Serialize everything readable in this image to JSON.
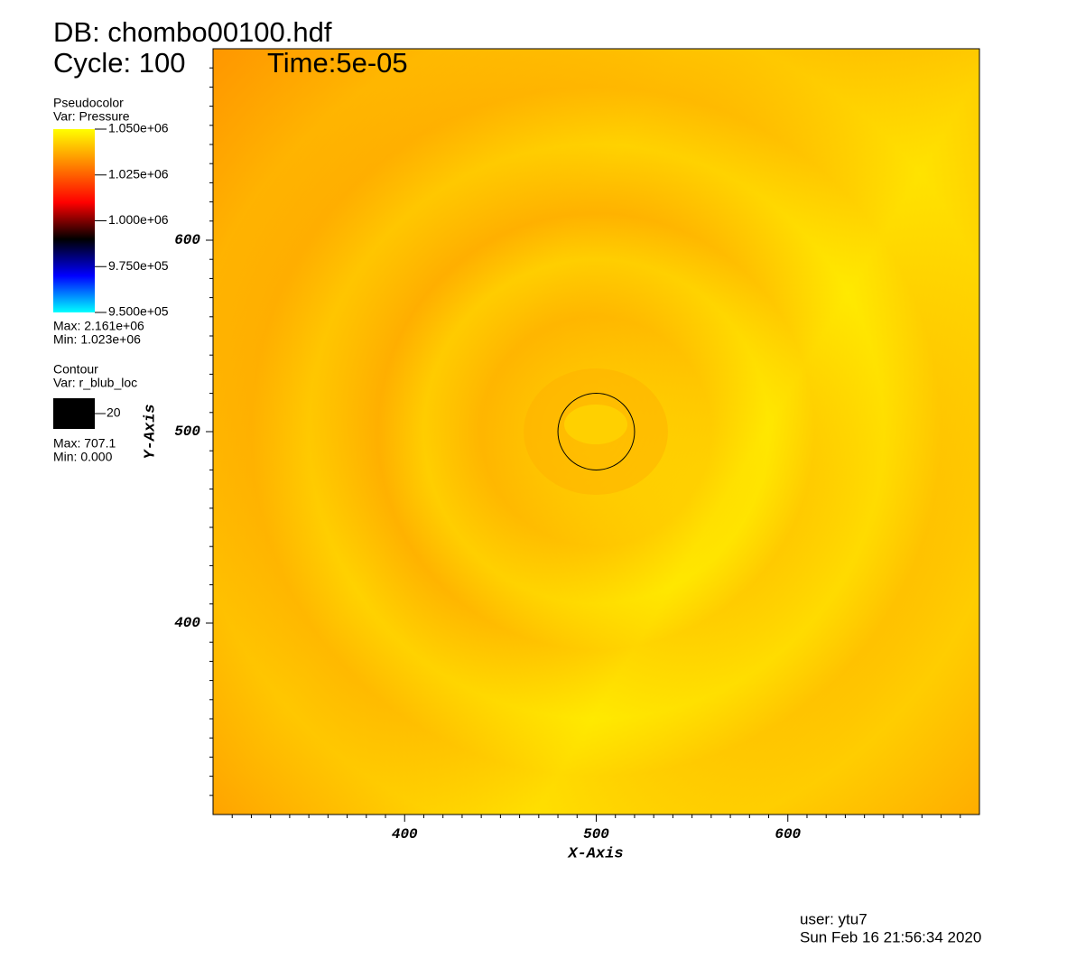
{
  "chart_data": {
    "type": "pseudocolor",
    "title": "DB: chombo00100.hdf",
    "cycle": "Cycle: 100",
    "time": "Time:5e-05",
    "xlabel": "X-Axis",
    "ylabel": "Y-Axis",
    "xlim": [
      300,
      700
    ],
    "ylim": [
      300,
      700
    ],
    "xticks": [
      400,
      500,
      600
    ],
    "yticks": [
      400,
      500,
      600
    ],
    "xminorticks": [
      310,
      320,
      330,
      340,
      350,
      360,
      370,
      380,
      390,
      410,
      420,
      430,
      440,
      450,
      460,
      470,
      480,
      490,
      510,
      520,
      530,
      540,
      550,
      560,
      570,
      580,
      590,
      610,
      620,
      630,
      640,
      650,
      660,
      670,
      680,
      690
    ],
    "yminorticks": [
      310,
      320,
      330,
      340,
      350,
      360,
      370,
      380,
      390,
      410,
      420,
      430,
      440,
      450,
      460,
      470,
      480,
      490,
      510,
      520,
      530,
      540,
      550,
      560,
      570,
      580,
      590,
      610,
      620,
      630,
      640,
      650,
      660,
      670,
      680,
      690
    ],
    "pseudocolor": {
      "heading": "Pseudocolor",
      "var": "Var: Pressure",
      "range": [
        950000,
        1050000
      ],
      "ticks": [
        {
          "value": 1050000,
          "label": "1.050e+06"
        },
        {
          "value": 1025000,
          "label": "1.025e+06"
        },
        {
          "value": 1000000,
          "label": "1.000e+06"
        },
        {
          "value": 975000,
          "label": "9.750e+05"
        },
        {
          "value": 950000,
          "label": "9.500e+05"
        }
      ],
      "colors": [
        "#00ffff",
        "#0000ff",
        "#000000",
        "#ff0000",
        "#ff8000",
        "#ffff00"
      ],
      "max": "Max: 2.161e+06",
      "min": "Min:  1.023e+06"
    },
    "contour": {
      "heading": "Contour",
      "var": "Var: r_blub_loc",
      "levels": [
        20
      ],
      "color": "#000000",
      "max": "Max: 707.1",
      "min": "Min: 0.000"
    },
    "user": "user: ytu7",
    "date": "Sun Feb 16 21:56:34 2020"
  }
}
